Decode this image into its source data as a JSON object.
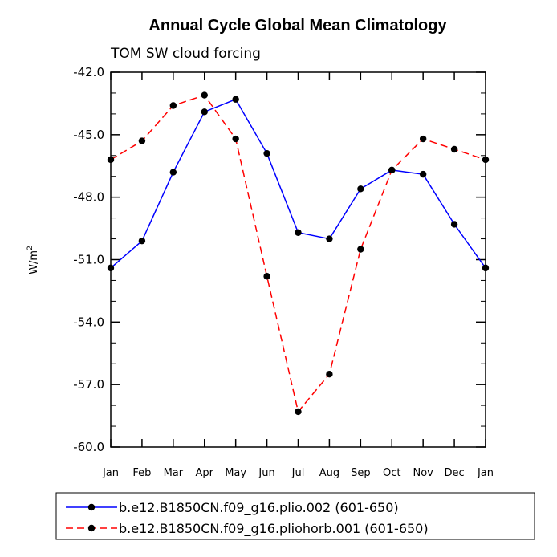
{
  "chart_data": {
    "type": "line",
    "title": "Annual Cycle Global Mean Climatology",
    "subtitle": "TOM SW cloud forcing",
    "xlabel": "",
    "ylabel": "W/m",
    "ylabel_superscript": "2",
    "ylim": [
      -60.0,
      -42.0
    ],
    "yticks": [
      "-42.0",
      "-45.0",
      "-48.0",
      "-51.0",
      "-54.0",
      "-57.0",
      "-60.0"
    ],
    "ytick_values": [
      -42,
      -45,
      -48,
      -51,
      -54,
      -57,
      -60
    ],
    "categories": [
      "Jan",
      "Feb",
      "Mar",
      "Apr",
      "May",
      "Jun",
      "Jul",
      "Aug",
      "Sep",
      "Oct",
      "Nov",
      "Dec",
      "Jan"
    ],
    "series": [
      {
        "name": "b.e12.B1850CN.f09_g16.plio.002 (601-650)",
        "color": "#0000ff",
        "dash": "solid",
        "values": [
          -51.4,
          -50.1,
          -46.8,
          -43.9,
          -43.3,
          -45.9,
          -49.7,
          -50.0,
          -47.6,
          -46.7,
          -46.9,
          -49.3,
          -51.4
        ]
      },
      {
        "name": "b.e12.B1850CN.f09_g16.pliohorb.001 (601-650)",
        "color": "#ff0000",
        "dash": "dashed",
        "values": [
          -46.2,
          -45.3,
          -43.6,
          -43.1,
          -45.2,
          -51.8,
          -58.3,
          -56.5,
          -50.5,
          -46.7,
          -45.2,
          -45.7,
          -46.2
        ]
      }
    ],
    "legend_position": "bottom"
  }
}
